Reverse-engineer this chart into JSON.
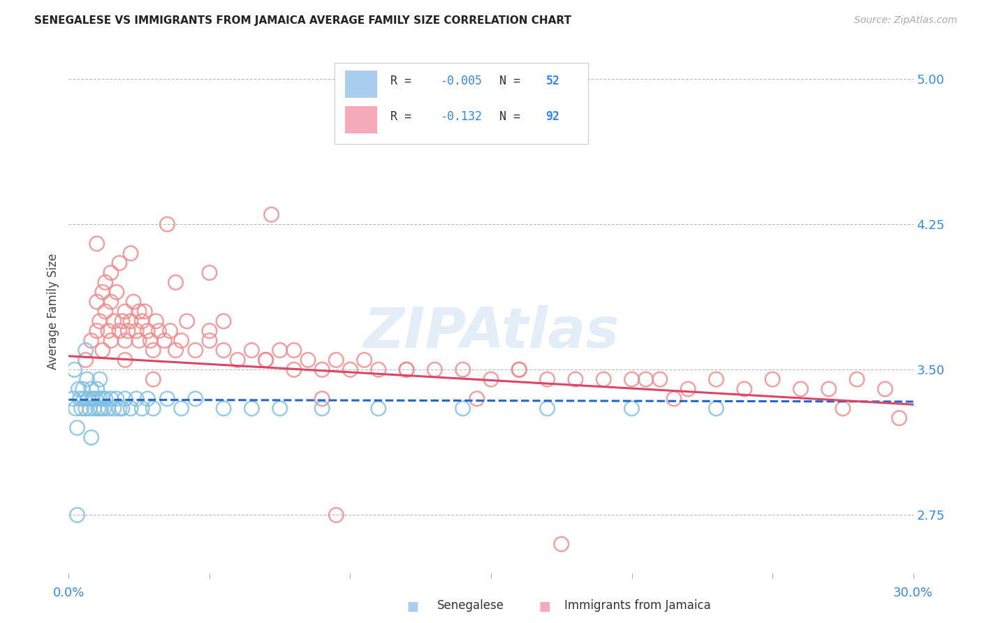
{
  "title": "SENEGALESE VS IMMIGRANTS FROM JAMAICA AVERAGE FAMILY SIZE CORRELATION CHART",
  "source": "Source: ZipAtlas.com",
  "ylabel": "Average Family Size",
  "xmin": 0.0,
  "xmax": 30.0,
  "ymin": 2.45,
  "ymax": 5.15,
  "yticks": [
    2.75,
    3.5,
    4.25,
    5.0
  ],
  "blue_color": "#7fbfdf",
  "pink_color": "#f08888",
  "blue_line_color": "#2266cc",
  "pink_line_color": "#dd4466",
  "blue_legend_color": "#aaccee",
  "pink_legend_color": "#f4aab8",
  "blue_R": "-0.005",
  "blue_N": "52",
  "pink_R": "-0.132",
  "pink_N": "92",
  "blue_line_x": [
    0,
    30
  ],
  "blue_line_y": [
    3.345,
    3.335
  ],
  "pink_line_x": [
    0,
    30
  ],
  "pink_line_y": [
    3.57,
    3.32
  ],
  "senegalese_x": [
    0.15,
    0.2,
    0.25,
    0.3,
    0.35,
    0.4,
    0.45,
    0.5,
    0.55,
    0.6,
    0.65,
    0.7,
    0.75,
    0.8,
    0.85,
    0.9,
    0.95,
    1.0,
    1.05,
    1.1,
    1.15,
    1.2,
    1.25,
    1.3,
    1.4,
    1.5,
    1.6,
    1.7,
    1.8,
    1.9,
    2.0,
    2.2,
    2.4,
    2.6,
    2.8,
    3.0,
    3.5,
    4.0,
    4.5,
    5.5,
    6.5,
    7.5,
    9.0,
    11.0,
    14.0,
    17.0,
    20.0,
    23.0,
    0.3,
    0.6,
    0.8,
    1.1
  ],
  "senegalese_y": [
    3.35,
    3.5,
    3.3,
    3.2,
    3.4,
    3.35,
    3.3,
    3.4,
    3.35,
    3.3,
    3.45,
    3.35,
    3.3,
    3.4,
    3.35,
    3.3,
    3.35,
    3.4,
    3.3,
    3.35,
    3.3,
    3.35,
    3.3,
    3.35,
    3.3,
    3.35,
    3.3,
    3.35,
    3.3,
    3.3,
    3.35,
    3.3,
    3.35,
    3.3,
    3.35,
    3.3,
    3.35,
    3.3,
    3.35,
    3.3,
    3.3,
    3.3,
    3.3,
    3.3,
    3.3,
    3.3,
    3.3,
    3.3,
    2.75,
    3.6,
    3.15,
    3.45
  ],
  "jamaica_x": [
    0.6,
    0.8,
    1.0,
    1.0,
    1.1,
    1.2,
    1.3,
    1.3,
    1.4,
    1.5,
    1.5,
    1.6,
    1.7,
    1.8,
    1.9,
    2.0,
    2.0,
    2.1,
    2.2,
    2.3,
    2.4,
    2.5,
    2.6,
    2.7,
    2.8,
    2.9,
    3.0,
    3.1,
    3.2,
    3.4,
    3.6,
    3.8,
    4.0,
    4.2,
    4.5,
    5.0,
    5.5,
    6.0,
    6.5,
    7.0,
    7.5,
    8.0,
    8.5,
    9.0,
    9.5,
    10.0,
    10.5,
    11.0,
    12.0,
    13.0,
    14.0,
    15.0,
    16.0,
    17.0,
    18.0,
    19.0,
    20.0,
    21.0,
    22.0,
    23.0,
    24.0,
    25.0,
    26.0,
    27.0,
    28.0,
    29.0,
    1.5,
    2.2,
    3.5,
    5.0,
    7.2,
    1.2,
    1.8,
    2.5,
    3.8,
    5.5,
    8.0,
    12.0,
    16.0,
    20.5,
    9.0,
    14.5,
    21.5,
    27.5,
    29.5,
    1.0,
    2.0,
    3.0,
    5.0,
    7.0,
    9.5,
    17.5
  ],
  "jamaica_y": [
    3.55,
    3.65,
    3.7,
    3.85,
    3.75,
    3.6,
    3.8,
    3.95,
    3.7,
    3.65,
    3.85,
    3.75,
    3.9,
    3.7,
    3.75,
    3.65,
    3.8,
    3.7,
    3.75,
    3.85,
    3.7,
    3.65,
    3.75,
    3.8,
    3.7,
    3.65,
    3.6,
    3.75,
    3.7,
    3.65,
    3.7,
    3.6,
    3.65,
    3.75,
    3.6,
    3.65,
    3.6,
    3.55,
    3.6,
    3.55,
    3.6,
    3.5,
    3.55,
    3.5,
    3.55,
    3.5,
    3.55,
    3.5,
    3.5,
    3.5,
    3.5,
    3.45,
    3.5,
    3.45,
    3.45,
    3.45,
    3.45,
    3.45,
    3.4,
    3.45,
    3.4,
    3.45,
    3.4,
    3.4,
    3.45,
    3.4,
    4.0,
    4.1,
    4.25,
    4.0,
    4.3,
    3.9,
    4.05,
    3.8,
    3.95,
    3.75,
    3.6,
    3.5,
    3.5,
    3.45,
    3.35,
    3.35,
    3.35,
    3.3,
    3.25,
    4.15,
    3.55,
    3.45,
    3.7,
    3.55,
    2.75,
    2.6
  ]
}
